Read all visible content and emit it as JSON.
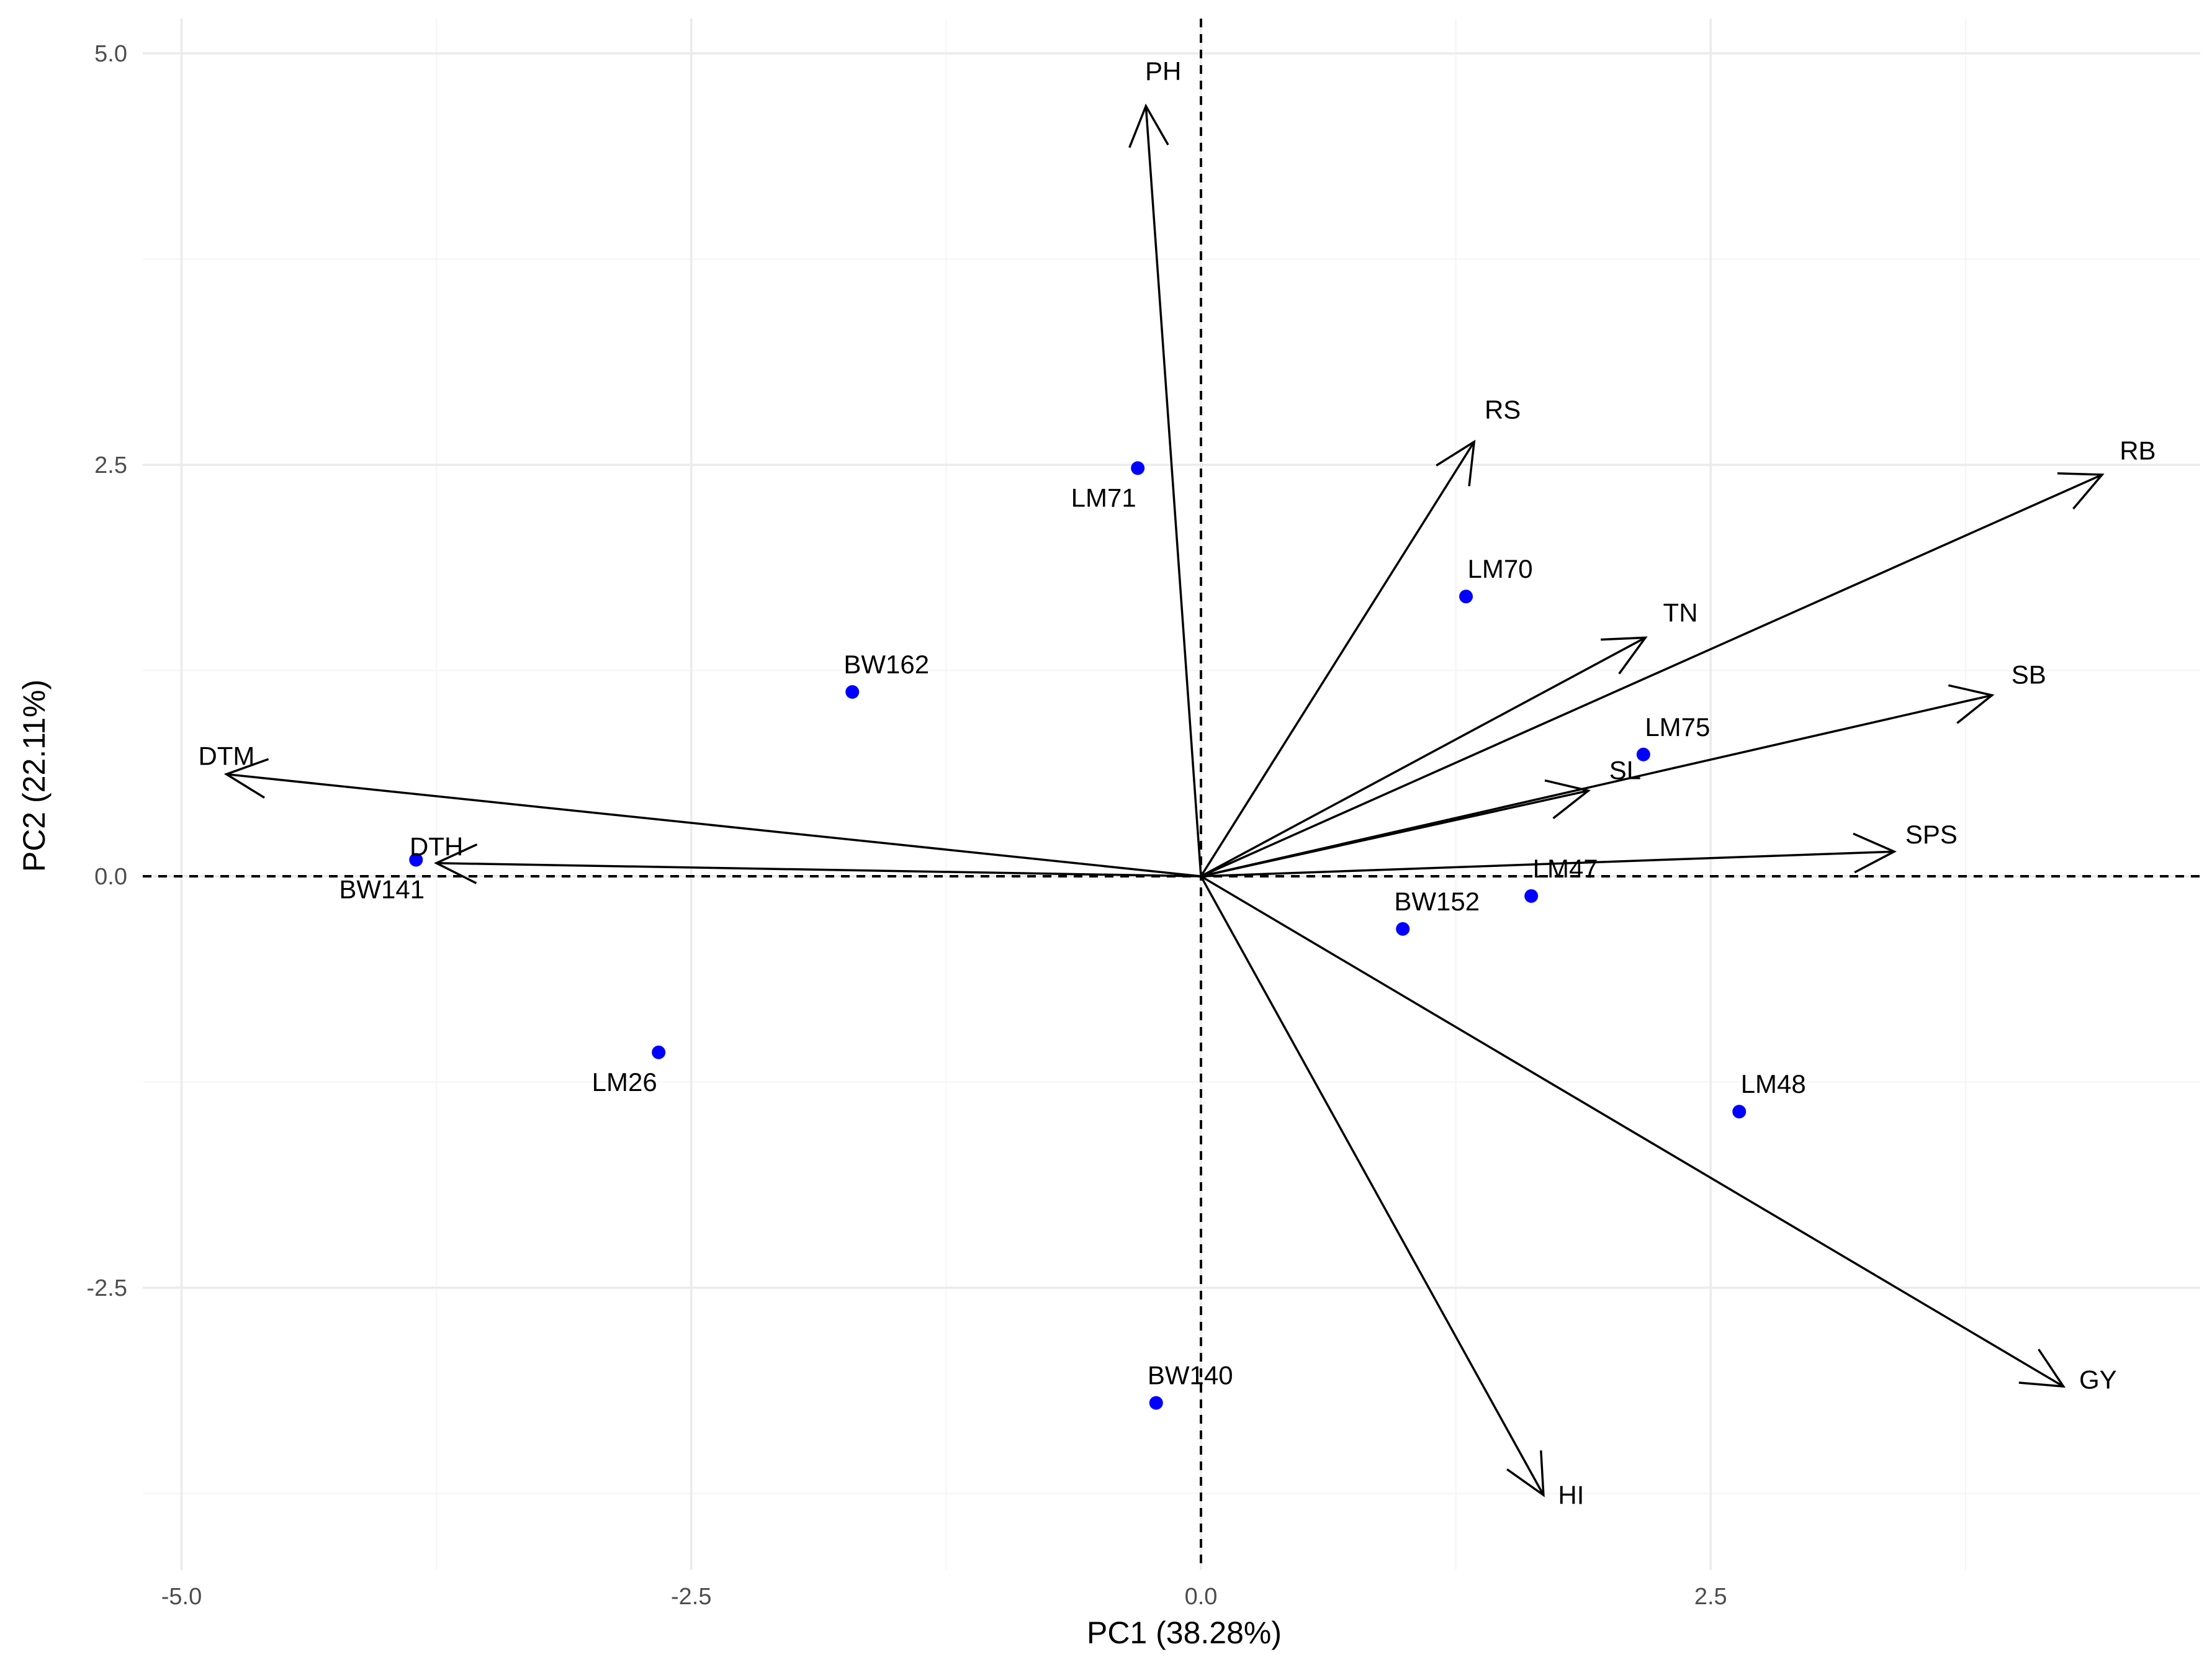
{
  "chart_data": {
    "type": "scatter",
    "subtype": "pca-biplot",
    "title": "",
    "xlabel": "PC1 (38.28%)",
    "ylabel": "PC2 (22.11%)",
    "xlim": [
      -5.5,
      4.9
    ],
    "ylim": [
      -4.2,
      5.3
    ],
    "xticks": [
      {
        "value": -5.0,
        "label": "-5.0"
      },
      {
        "value": -2.5,
        "label": "-2.5"
      },
      {
        "value": 0.0,
        "label": "0.0"
      },
      {
        "value": 2.5,
        "label": "2.5"
      }
    ],
    "yticks": [
      {
        "value": 5.0,
        "label": "5.0"
      },
      {
        "value": 2.5,
        "label": "2.5"
      },
      {
        "value": 0.0,
        "label": "0.0"
      },
      {
        "value": -2.5,
        "label": "-2.5"
      }
    ],
    "grid": true,
    "reference_lines": {
      "x": 0,
      "y": 0,
      "style": "dashed"
    },
    "point_color": "#0000ff",
    "arrow_color": "#000000",
    "observations": [
      {
        "label": "LM71",
        "x": -0.31,
        "y": 2.48
      },
      {
        "label": "LM70",
        "x": 1.3,
        "y": 1.7
      },
      {
        "label": "BW162",
        "x": -1.71,
        "y": 1.12
      },
      {
        "label": "LM75",
        "x": 2.17,
        "y": 0.74
      },
      {
        "label": "BW141",
        "x": -3.85,
        "y": 0.1
      },
      {
        "label": "LM47",
        "x": 1.62,
        "y": -0.12
      },
      {
        "label": "BW152",
        "x": 0.99,
        "y": -0.32
      },
      {
        "label": "LM26",
        "x": -2.66,
        "y": -1.07
      },
      {
        "label": "LM48",
        "x": 2.64,
        "y": -1.43
      },
      {
        "label": "BW140",
        "x": -0.22,
        "y": -3.2
      }
    ],
    "variables": [
      {
        "label": "PH",
        "x": -0.27,
        "y": 4.68
      },
      {
        "label": "RS",
        "x": 1.34,
        "y": 2.64
      },
      {
        "label": "RB",
        "x": 4.42,
        "y": 2.44
      },
      {
        "label": "TN",
        "x": 2.18,
        "y": 1.45
      },
      {
        "label": "SB",
        "x": 3.88,
        "y": 1.1
      },
      {
        "label": "SL",
        "x": 1.9,
        "y": 0.52
      },
      {
        "label": "SPS",
        "x": 3.4,
        "y": 0.15
      },
      {
        "label": "DTM",
        "x": -4.78,
        "y": 0.62
      },
      {
        "label": "DTH",
        "x": -3.75,
        "y": 0.08
      },
      {
        "label": "GY",
        "x": 4.23,
        "y": -3.1
      },
      {
        "label": "HI",
        "x": 1.68,
        "y": -3.76
      }
    ]
  }
}
